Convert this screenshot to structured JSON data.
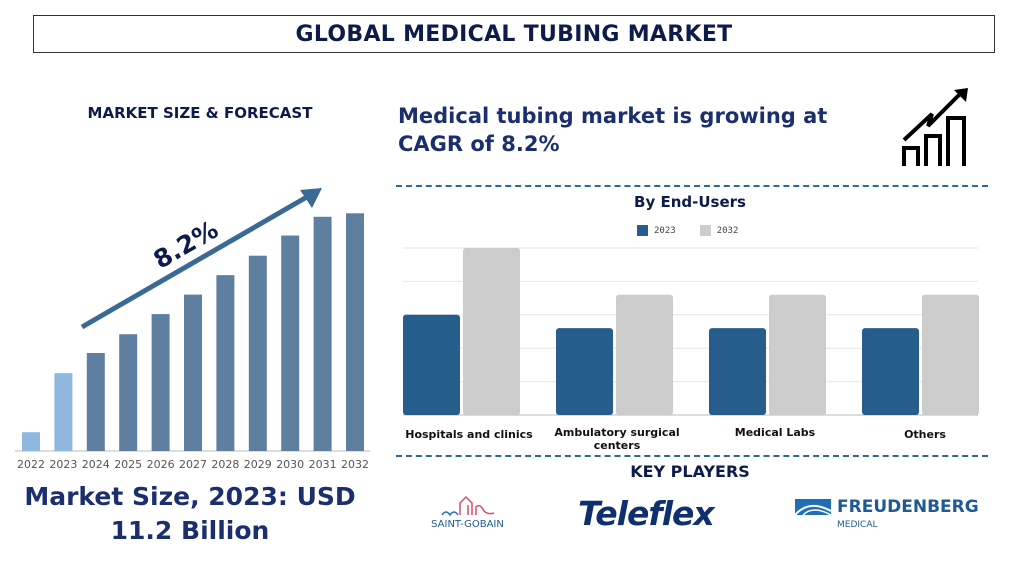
{
  "header": {
    "title": "GLOBAL MEDICAL TUBING MARKET"
  },
  "left_panel": {
    "title": "MARKET SIZE & FORECAST",
    "cagr_label": "8.2%",
    "market_size_text": "Market Size, 2023: USD 11.2 Billion"
  },
  "right_panel": {
    "cagr_text": "Medical tubing market is growing at CAGR of 8.2%",
    "growth_icon": "bar-chart-growth-arrow-icon",
    "key_players_title": "KEY PLAYERS",
    "key_players": [
      "SAINT-GOBAIN",
      "Teleflex",
      "FREUDENBERG"
    ],
    "freudenberg_sub": "MEDICAL"
  },
  "colors": {
    "navy": "#1b2f6e",
    "bar_dark": "#5f7fa0",
    "bar_light": "#8fb8df",
    "series_2023": "#275d8c",
    "series_2032": "#cccccc",
    "dash": "#2a6a9a"
  },
  "chart_data": [
    {
      "type": "bar",
      "title": "",
      "categories": [
        "2022",
        "2023",
        "2024",
        "2025",
        "2026",
        "2027",
        "2028",
        "2029",
        "2030",
        "2031",
        "2032"
      ],
      "values": [
        2.7,
        11.2,
        14.1,
        16.8,
        19.7,
        22.5,
        25.3,
        28.1,
        31.0,
        33.7,
        34.2
      ],
      "highlighted": [
        "2022",
        "2023"
      ],
      "annotation": "8.2%",
      "ylim": [
        0,
        40
      ],
      "grid": false
    },
    {
      "type": "bar",
      "title": "By End-Users",
      "categories": [
        "Hospitals and clinics",
        "Ambulatory surgical centers",
        "Medical Labs",
        "Others"
      ],
      "series": [
        {
          "name": "2023",
          "values": [
            3.0,
            2.6,
            2.6,
            2.6
          ]
        },
        {
          "name": "2032",
          "values": [
            5.0,
            3.6,
            3.6,
            3.6
          ]
        }
      ],
      "ylim": [
        0,
        5
      ],
      "grid": true,
      "legend": "top"
    }
  ]
}
